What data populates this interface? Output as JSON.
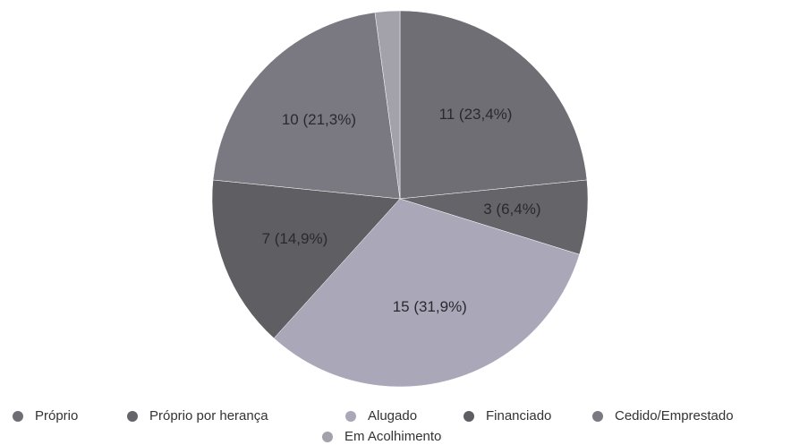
{
  "chart_data": {
    "type": "pie",
    "categories": [
      "Próprio",
      "Próprio por herança",
      "Alugado",
      "Financiado",
      "Cedido/Emprestado",
      "Em Acolhimento"
    ],
    "values": [
      11,
      3,
      15,
      7,
      10,
      1
    ],
    "value_labels": [
      "11 (23,4%)",
      "3 (6,4%)",
      "15 (31,9%)",
      "7 (14,9%)",
      "10 (21,3%)",
      null
    ],
    "colors": [
      "#6f6e74",
      "#656469",
      "#aaa7b9",
      "#5f5e63",
      "#7a7880",
      "#a3a1aa"
    ],
    "legend": "bottom"
  }
}
